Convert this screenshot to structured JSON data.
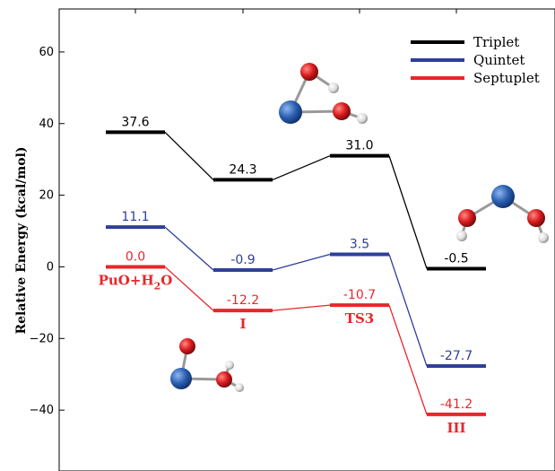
{
  "chart_data": {
    "type": "line",
    "ylabel": "Relative Energy (kcal/mol)",
    "ylim": [
      -57,
      72
    ],
    "y_ticks": [
      60,
      40,
      20,
      0,
      -20,
      -40
    ],
    "y_tick_labels": [
      "60",
      "40",
      "20",
      "0",
      "−20",
      "−40"
    ],
    "grid": false,
    "legend_position": "top-right",
    "series": [
      {
        "name": "Triplet",
        "color": "#000000",
        "values": [
          37.6,
          24.3,
          31.0,
          -0.5
        ],
        "labels": [
          "37.6",
          "24.3",
          "31.0",
          "-0.5"
        ]
      },
      {
        "name": "Quintet",
        "color": "#2e3f9a",
        "values": [
          11.1,
          -0.9,
          3.5,
          -27.7
        ],
        "labels": [
          "11.1",
          "-0.9",
          "3.5",
          "-27.7"
        ]
      },
      {
        "name": "Septuplet",
        "color": "#e8262a",
        "values": [
          0.0,
          -12.2,
          -10.7,
          -41.2
        ],
        "labels": [
          "0.0",
          "-12.2",
          "-10.7",
          "-41.2"
        ]
      }
    ],
    "state_labels": [
      {
        "main": "PuO+H",
        "sub": "2",
        "tail": "O"
      },
      {
        "main": "I",
        "sub": "",
        "tail": ""
      },
      {
        "main": "TS3",
        "sub": "",
        "tail": ""
      },
      {
        "main": "III",
        "sub": "",
        "tail": ""
      }
    ],
    "colors": {
      "pu_atom": "#2a5fb0",
      "o_atom": "#d7191c",
      "h_atom": "#eeeeee"
    }
  }
}
